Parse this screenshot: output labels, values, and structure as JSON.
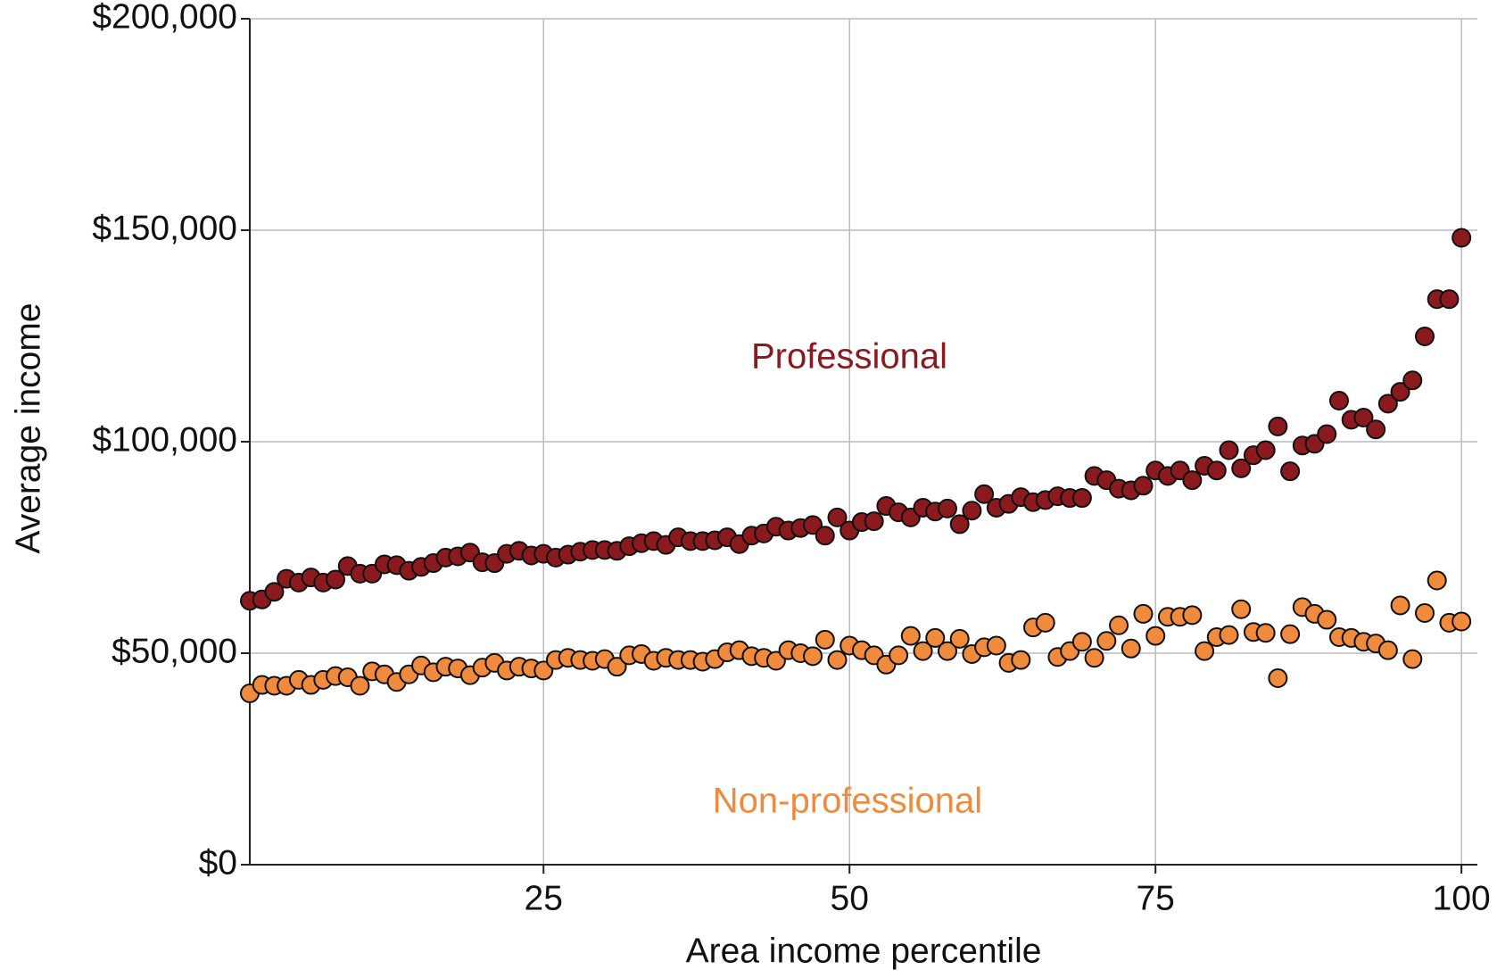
{
  "chart_data": {
    "type": "scatter",
    "xlabel": "Area income percentile",
    "ylabel": "Average income",
    "xlim": [
      1,
      101.3
    ],
    "ylim": [
      0,
      200000
    ],
    "xticks": [
      25,
      50,
      75,
      100
    ],
    "yticks": [
      {
        "value": 0,
        "label": "$0"
      },
      {
        "value": 50000,
        "label": "$50,000"
      },
      {
        "value": 100000,
        "label": "$100,000"
      },
      {
        "value": 150000,
        "label": "$150,000"
      },
      {
        "value": 200000,
        "label": "$200,000"
      }
    ],
    "grid": true,
    "x": [
      1,
      2,
      3,
      4,
      5,
      6,
      7,
      8,
      9,
      10,
      11,
      12,
      13,
      14,
      15,
      16,
      17,
      18,
      19,
      20,
      21,
      22,
      23,
      24,
      25,
      26,
      27,
      28,
      29,
      30,
      31,
      32,
      33,
      34,
      35,
      36,
      37,
      38,
      39,
      40,
      41,
      42,
      43,
      44,
      45,
      46,
      47,
      48,
      49,
      50,
      51,
      52,
      53,
      54,
      55,
      56,
      57,
      58,
      59,
      60,
      61,
      62,
      63,
      64,
      65,
      66,
      67,
      68,
      69,
      70,
      71,
      72,
      73,
      74,
      75,
      76,
      77,
      78,
      79,
      80,
      81,
      82,
      83,
      84,
      85,
      86,
      87,
      88,
      89,
      90,
      91,
      92,
      93,
      94,
      95,
      96,
      97,
      98,
      99,
      100
    ],
    "series": [
      {
        "name": "Professional",
        "color": "#8b1a1f",
        "values": [
          62400,
          62700,
          64500,
          67600,
          66700,
          67900,
          66700,
          67400,
          70600,
          68800,
          68800,
          71000,
          70800,
          69500,
          70400,
          71300,
          72600,
          72900,
          73800,
          71500,
          71300,
          73500,
          74200,
          73100,
          73500,
          72600,
          73300,
          74000,
          74400,
          74400,
          74200,
          75300,
          76000,
          76500,
          75600,
          77400,
          76500,
          76500,
          76700,
          77400,
          75800,
          77800,
          78300,
          79900,
          79000,
          79600,
          80300,
          77800,
          82100,
          79000,
          81000,
          81200,
          84800,
          83300,
          82100,
          84400,
          83500,
          84200,
          80500,
          83700,
          87600,
          84400,
          85300,
          86900,
          85700,
          86200,
          87100,
          86700,
          86700,
          91900,
          90900,
          88900,
          88500,
          89600,
          93200,
          91900,
          93200,
          90900,
          94300,
          93200,
          98000,
          93700,
          96800,
          98000,
          103600,
          93000,
          99100,
          99500,
          101800,
          109700,
          105200,
          105700,
          102900,
          109000,
          111800,
          114500,
          124900,
          133700,
          133700,
          148200
        ]
      },
      {
        "name": "Non-professional",
        "color": "#f08a3c",
        "values": [
          40500,
          42500,
          42300,
          42300,
          43700,
          42500,
          43700,
          44600,
          44300,
          42300,
          45700,
          45000,
          43200,
          45000,
          47100,
          45500,
          46800,
          46400,
          44800,
          46600,
          47700,
          45900,
          46800,
          46400,
          45900,
          48400,
          48900,
          48400,
          48200,
          48600,
          46800,
          49500,
          49800,
          48200,
          48900,
          48400,
          48400,
          48000,
          48600,
          50200,
          50700,
          49300,
          48900,
          48200,
          50700,
          50000,
          49300,
          53200,
          48400,
          51800,
          50700,
          49500,
          47300,
          49500,
          54100,
          50500,
          53600,
          50500,
          53400,
          49800,
          51400,
          51800,
          47700,
          48400,
          56100,
          57200,
          49100,
          50500,
          52700,
          48900,
          52900,
          56600,
          51100,
          59300,
          54100,
          58600,
          58600,
          59000,
          50500,
          53800,
          54300,
          60400,
          55000,
          54800,
          44100,
          54500,
          60900,
          59300,
          57900,
          53800,
          53600,
          52700,
          52300,
          50700,
          61300,
          48600,
          59500,
          67200,
          57200,
          57500
        ]
      }
    ]
  }
}
